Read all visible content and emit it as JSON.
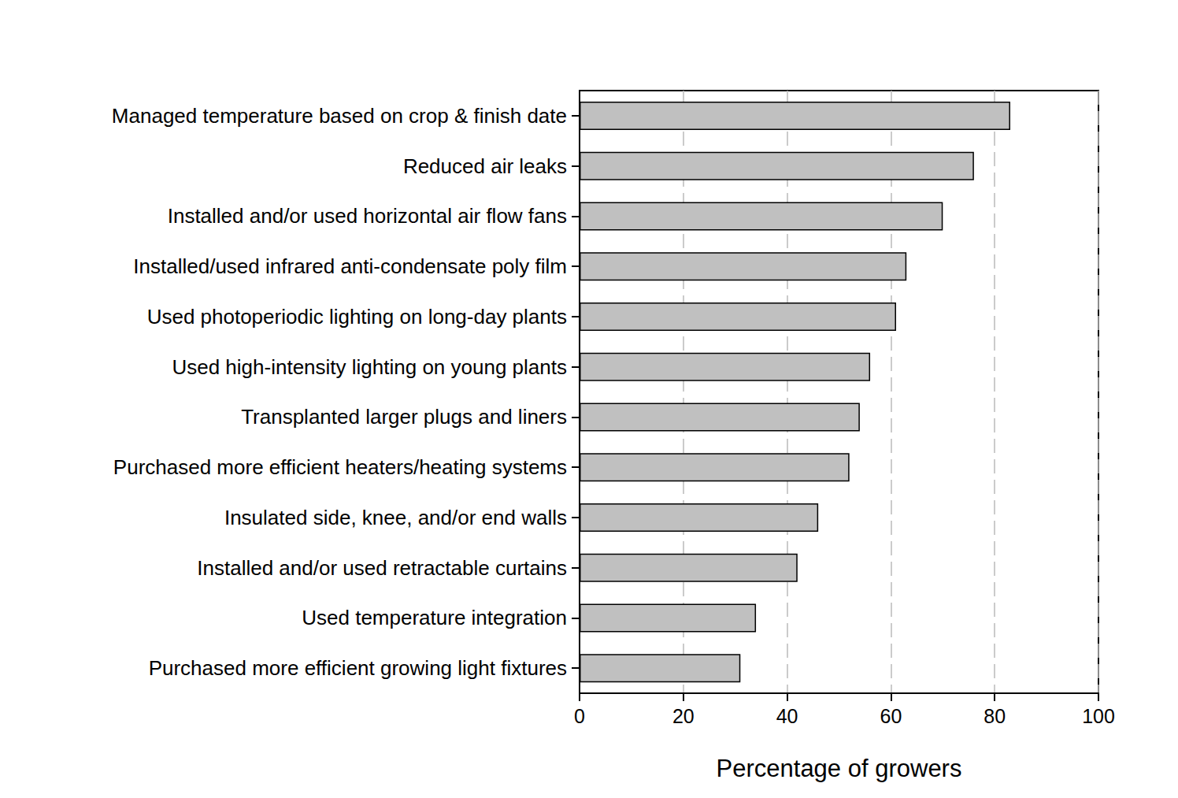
{
  "chart_data": {
    "type": "bar",
    "orientation": "horizontal",
    "categories": [
      "Managed temperature based on crop & finish date",
      "Reduced air leaks",
      "Installed and/or used horizontal air flow fans",
      "Installed/used infrared anti-condensate poly film",
      "Used photoperiodic lighting on long-day plants",
      "Used high-intensity lighting on young plants",
      "Transplanted larger plugs and liners",
      "Purchased more efficient heaters/heating systems",
      "Insulated side, knee, and/or end walls",
      "Installed and/or used retractable curtains",
      "Used temperature integration",
      "Purchased more efficient growing light fixtures"
    ],
    "values": [
      83,
      76,
      70,
      63,
      61,
      56,
      54,
      52,
      46,
      42,
      34,
      31
    ],
    "color": "#c0c0c0",
    "xlabel": "Percentage of growers",
    "xlim": [
      0,
      100
    ],
    "xticks": [
      0,
      20,
      40,
      60,
      80,
      100
    ],
    "grid": true
  }
}
